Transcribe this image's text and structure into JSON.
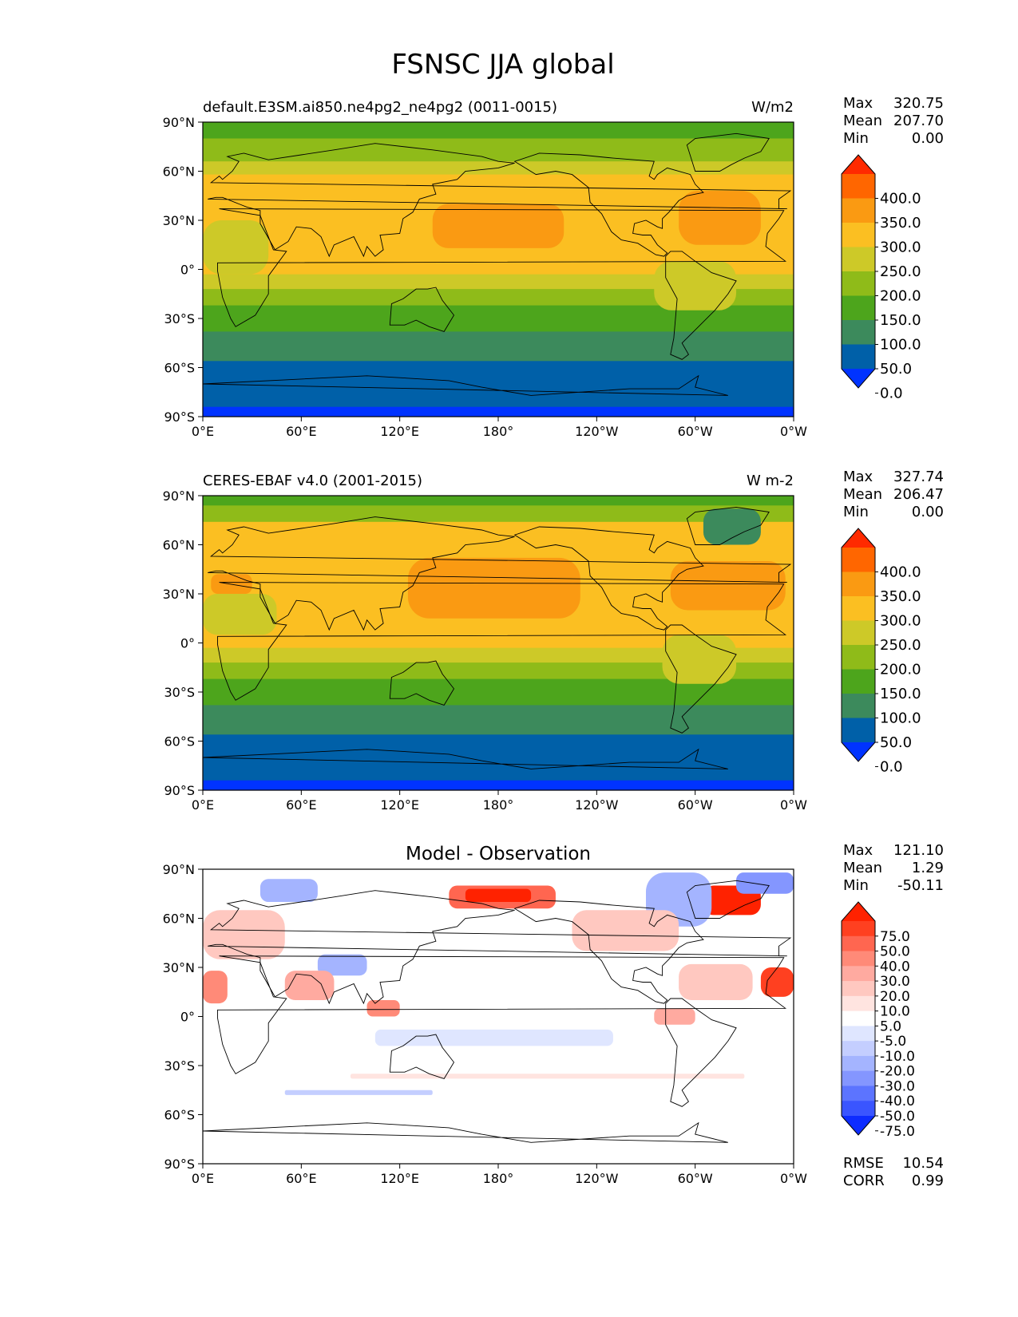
{
  "title": "FSNSC JJA global",
  "axes": {
    "lat_ticks": [
      "90°N",
      "60°N",
      "30°N",
      "0°",
      "30°S",
      "60°S",
      "90°S"
    ],
    "lon_ticks": [
      "0°E",
      "60°E",
      "120°E",
      "180°",
      "120°W",
      "60°W",
      "0°W"
    ]
  },
  "chart_data": [
    {
      "type": "heatmap",
      "panel": "model",
      "title_left": "default.E3SM.ai850.ne4pg2_ne4pg2 (0011-0015)",
      "title_right": "W/m2",
      "stats": [
        {
          "label": "Max",
          "value": "320.75"
        },
        {
          "label": "Mean",
          "value": "207.70"
        },
        {
          "label": "Min",
          "value": "0.00"
        }
      ],
      "colorbar": {
        "levels": [
          "400.0",
          "350.0",
          "300.0",
          "250.0",
          "200.0",
          "150.0",
          "100.0",
          "50.0",
          "0.0"
        ],
        "colors": [
          "#ff2a00",
          "#ff6600",
          "#fa9a12",
          "#fbbf22",
          "#cdc928",
          "#8fbb19",
          "#4da51c",
          "#3c8a5c",
          "#0060a8",
          "#0033ff"
        ]
      },
      "zonal_bands": [
        {
          "lat": [
            80,
            90
          ],
          "color": "#4da51c"
        },
        {
          "lat": [
            66,
            80
          ],
          "color": "#8fbb19"
        },
        {
          "lat": [
            58,
            66
          ],
          "color": "#cdc928"
        },
        {
          "lat": [
            -3,
            58
          ],
          "color": "#fbbf22"
        },
        {
          "lat": [
            -12,
            -3
          ],
          "color": "#cdc928"
        },
        {
          "lat": [
            -22,
            -12
          ],
          "color": "#8fbb19"
        },
        {
          "lat": [
            -38,
            -22
          ],
          "color": "#4da51c"
        },
        {
          "lat": [
            -56,
            -38
          ],
          "color": "#3c8a5c"
        },
        {
          "lat": [
            -84,
            -56
          ],
          "color": "#0060a8"
        },
        {
          "lat": [
            -90,
            -84
          ],
          "color": "#0033ff"
        }
      ],
      "regions": [
        {
          "lon": [
            140,
            220
          ],
          "lat": [
            13,
            40
          ],
          "color": "#fa9a12"
        },
        {
          "lon": [
            290,
            340
          ],
          "lat": [
            15,
            48
          ],
          "color": "#fa9a12"
        },
        {
          "lon": [
            0,
            40
          ],
          "lat": [
            -3,
            30
          ],
          "color": "#cdc928"
        },
        {
          "lon": [
            275,
            325
          ],
          "lat": [
            -25,
            5
          ],
          "color": "#cdc928"
        }
      ]
    },
    {
      "type": "heatmap",
      "panel": "observation",
      "title_left": "CERES-EBAF v4.0 (2001-2015)",
      "title_right": "W m-2",
      "stats": [
        {
          "label": "Max",
          "value": "327.74"
        },
        {
          "label": "Mean",
          "value": "206.47"
        },
        {
          "label": "Min",
          "value": "0.00"
        }
      ],
      "colorbar": {
        "levels": [
          "400.0",
          "350.0",
          "300.0",
          "250.0",
          "200.0",
          "150.0",
          "100.0",
          "50.0",
          "0.0"
        ],
        "colors": [
          "#ff2a00",
          "#ff6600",
          "#fa9a12",
          "#fbbf22",
          "#cdc928",
          "#8fbb19",
          "#4da51c",
          "#3c8a5c",
          "#0060a8",
          "#0033ff"
        ]
      },
      "zonal_bands": [
        {
          "lat": [
            84,
            90
          ],
          "color": "#4da51c"
        },
        {
          "lat": [
            74,
            84
          ],
          "color": "#8fbb19"
        },
        {
          "lat": [
            -3,
            74
          ],
          "color": "#fbbf22"
        },
        {
          "lat": [
            -12,
            -3
          ],
          "color": "#cdc928"
        },
        {
          "lat": [
            -22,
            -12
          ],
          "color": "#8fbb19"
        },
        {
          "lat": [
            -38,
            -22
          ],
          "color": "#4da51c"
        },
        {
          "lat": [
            -56,
            -38
          ],
          "color": "#3c8a5c"
        },
        {
          "lat": [
            -84,
            -56
          ],
          "color": "#0060a8"
        },
        {
          "lat": [
            -90,
            -84
          ],
          "color": "#0033ff"
        }
      ],
      "regions": [
        {
          "lon": [
            125,
            230
          ],
          "lat": [
            15,
            52
          ],
          "color": "#fa9a12"
        },
        {
          "lon": [
            285,
            355
          ],
          "lat": [
            20,
            50
          ],
          "color": "#fa9a12"
        },
        {
          "lon": [
            5,
            30
          ],
          "lat": [
            30,
            42
          ],
          "color": "#fa9a12"
        },
        {
          "lon": [
            305,
            340
          ],
          "lat": [
            60,
            82
          ],
          "color": "#3c8a5c"
        },
        {
          "lon": [
            0,
            45
          ],
          "lat": [
            5,
            30
          ],
          "color": "#cdc928"
        },
        {
          "lon": [
            280,
            325
          ],
          "lat": [
            -25,
            5
          ],
          "color": "#cdc928"
        }
      ]
    },
    {
      "type": "heatmap",
      "panel": "difference",
      "title_center": "Model - Observation",
      "stats": [
        {
          "label": "Max",
          "value": "121.10"
        },
        {
          "label": "Mean",
          "value": "1.29"
        },
        {
          "label": "Min",
          "value": "-50.11"
        }
      ],
      "metrics": [
        {
          "label": "RMSE",
          "value": "10.54"
        },
        {
          "label": "CORR",
          "value": "0.99"
        }
      ],
      "colorbar": {
        "levels": [
          "75.0",
          "50.0",
          "40.0",
          "30.0",
          "20.0",
          "10.0",
          "5.0",
          "-5.0",
          "-10.0",
          "-20.0",
          "-30.0",
          "-40.0",
          "-50.0",
          "-75.0"
        ],
        "colors": [
          "#ff2200",
          "#ff4020",
          "#ff6650",
          "#ff8a78",
          "#ffaaa0",
          "#ffc8c0",
          "#ffe4e0",
          "#ffffff",
          "#dfe6ff",
          "#c4ceff",
          "#a4b4ff",
          "#8496ff",
          "#5c74ff",
          "#3a55ff",
          "#0d2cff"
        ]
      },
      "regions": [
        {
          "lon": [
            150,
            215
          ],
          "lat": [
            66,
            80
          ],
          "color": "#ff6650"
        },
        {
          "lon": [
            160,
            200
          ],
          "lat": [
            70,
            78
          ],
          "color": "#ff2200"
        },
        {
          "lon": [
            305,
            340
          ],
          "lat": [
            62,
            80
          ],
          "color": "#ff2200"
        },
        {
          "lon": [
            270,
            310
          ],
          "lat": [
            55,
            88
          ],
          "color": "#a4b4ff"
        },
        {
          "lon": [
            325,
            360
          ],
          "lat": [
            75,
            88
          ],
          "color": "#8496ff"
        },
        {
          "lon": [
            35,
            70
          ],
          "lat": [
            70,
            84
          ],
          "color": "#a4b4ff"
        },
        {
          "lon": [
            70,
            100
          ],
          "lat": [
            25,
            38
          ],
          "color": "#a4b4ff"
        },
        {
          "lon": [
            340,
            360
          ],
          "lat": [
            12,
            30
          ],
          "color": "#ff4020"
        },
        {
          "lon": [
            0,
            50
          ],
          "lat": [
            35,
            65
          ],
          "color": "#ffc8c0"
        },
        {
          "lon": [
            0,
            15
          ],
          "lat": [
            8,
            28
          ],
          "color": "#ff8a78"
        },
        {
          "lon": [
            50,
            80
          ],
          "lat": [
            10,
            28
          ],
          "color": "#ffaaa0"
        },
        {
          "lon": [
            100,
            120
          ],
          "lat": [
            0,
            10
          ],
          "color": "#ff8a78"
        },
        {
          "lon": [
            225,
            290
          ],
          "lat": [
            40,
            65
          ],
          "color": "#ffc8c0"
        },
        {
          "lon": [
            290,
            335
          ],
          "lat": [
            10,
            32
          ],
          "color": "#ffc8c0"
        },
        {
          "lon": [
            275,
            300
          ],
          "lat": [
            -5,
            5
          ],
          "color": "#ffaaa0"
        },
        {
          "lon": [
            105,
            250
          ],
          "lat": [
            -18,
            -8
          ],
          "color": "#dfe6ff"
        },
        {
          "lon": [
            50,
            140
          ],
          "lat": [
            -48,
            -45
          ],
          "color": "#c4ceff"
        },
        {
          "lon": [
            90,
            330
          ],
          "lat": [
            -38,
            -35
          ],
          "color": "#ffe4e0"
        }
      ]
    }
  ]
}
